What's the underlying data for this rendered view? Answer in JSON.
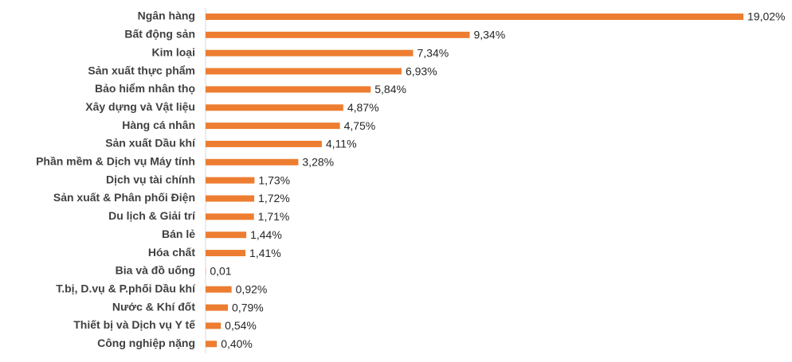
{
  "chart_data": {
    "type": "bar",
    "orientation": "horizontal",
    "color": "#ED7D31",
    "categories": [
      "Ngân hàng",
      "Bất động sản",
      "Kim loại",
      "Sản xuất thực phẩm",
      "Bảo hiểm nhân thọ",
      "Xây dựng và Vật liệu",
      "Hàng cá nhân",
      "Sản xuất Dầu khí",
      "Phần mềm & Dịch vụ Máy tính",
      "Dịch vụ tài chính",
      "Sản xuất & Phân phối Điện",
      "Du lịch & Giải trí",
      "Bán lẻ",
      "Hóa chất",
      "Bia và đồ uống",
      "T.bị, D.vụ & P.phối Dầu khí",
      "Nước & Khí đốt",
      "Thiết bị và Dịch vụ Y tế",
      "Công nghiệp nặng"
    ],
    "values": [
      19.02,
      9.34,
      7.34,
      6.93,
      5.84,
      4.87,
      4.75,
      4.11,
      3.28,
      1.73,
      1.72,
      1.71,
      1.44,
      1.41,
      0.01,
      0.92,
      0.79,
      0.54,
      0.4
    ],
    "value_labels": [
      "19,02%",
      "9,34%",
      "7,34%",
      "6,93%",
      "5,84%",
      "4,87%",
      "4,75%",
      "4,11%",
      "3,28%",
      "1,73%",
      "1,72%",
      "1,71%",
      "1,44%",
      "1,41%",
      "0,01",
      "0,92%",
      "0,79%",
      "0,54%",
      "0,40%"
    ]
  }
}
